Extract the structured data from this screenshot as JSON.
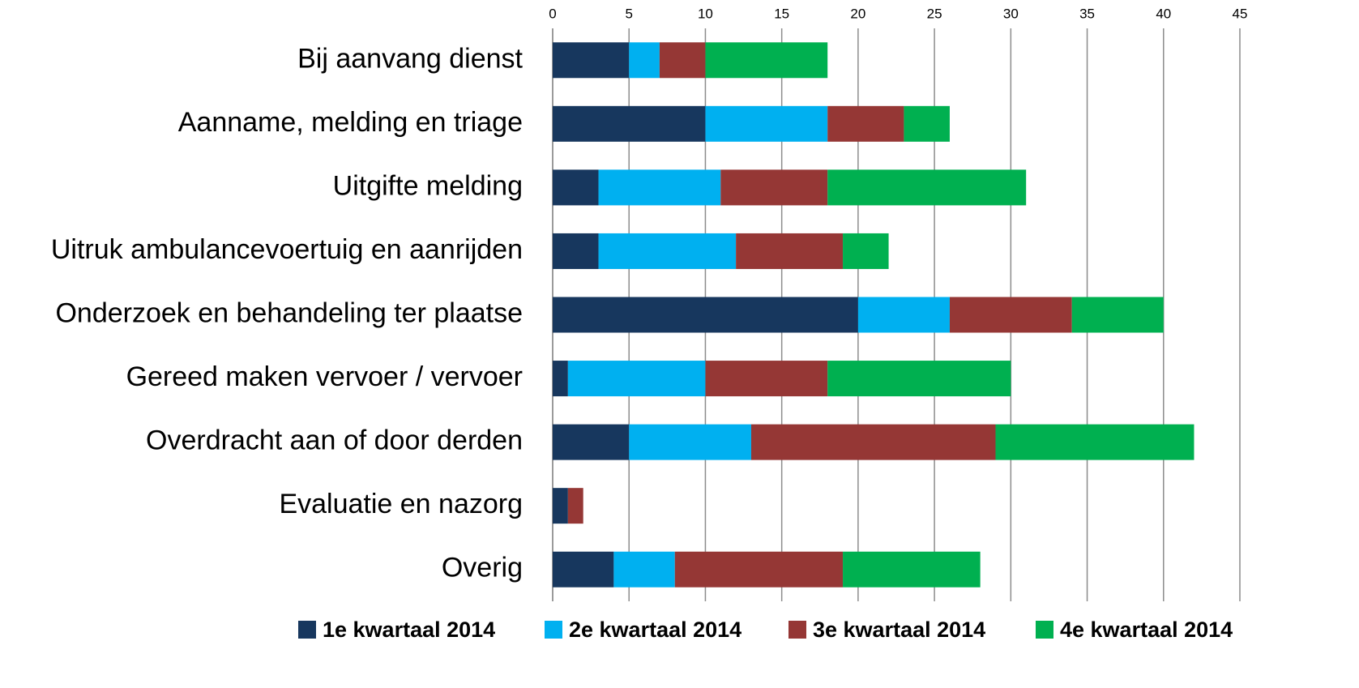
{
  "chart_data": {
    "type": "stacked-bar-horizontal",
    "categories": [
      "Bij aanvang dienst",
      "Aanname, melding en triage",
      "Uitgifte melding",
      "Uitruk ambulancevoertuig en aanrijden",
      "Onderzoek en behandeling ter plaatse",
      "Gereed maken vervoer / vervoer",
      "Overdracht aan of door derden",
      "Evaluatie en nazorg",
      "Overig"
    ],
    "series": [
      {
        "name": "1e kwartaal 2014",
        "color": "#17375e",
        "values": [
          5,
          10,
          3,
          3,
          20,
          1,
          5,
          1,
          4
        ]
      },
      {
        "name": "2e kwartaal 2014",
        "color": "#00b0f0",
        "values": [
          2,
          8,
          8,
          9,
          6,
          9,
          8,
          0,
          4
        ]
      },
      {
        "name": "3e kwartaal 2014",
        "color": "#953735",
        "values": [
          3,
          5,
          7,
          7,
          8,
          8,
          16,
          1,
          11
        ]
      },
      {
        "name": "4e kwartaal 2014",
        "color": "#00b050",
        "values": [
          8,
          3,
          13,
          3,
          6,
          12,
          13,
          0,
          9
        ]
      }
    ],
    "xlim": [
      0,
      45
    ],
    "xticks": [
      0,
      5,
      10,
      15,
      20,
      25,
      30,
      35,
      40,
      45
    ],
    "grid": true,
    "legend": "bottom"
  }
}
